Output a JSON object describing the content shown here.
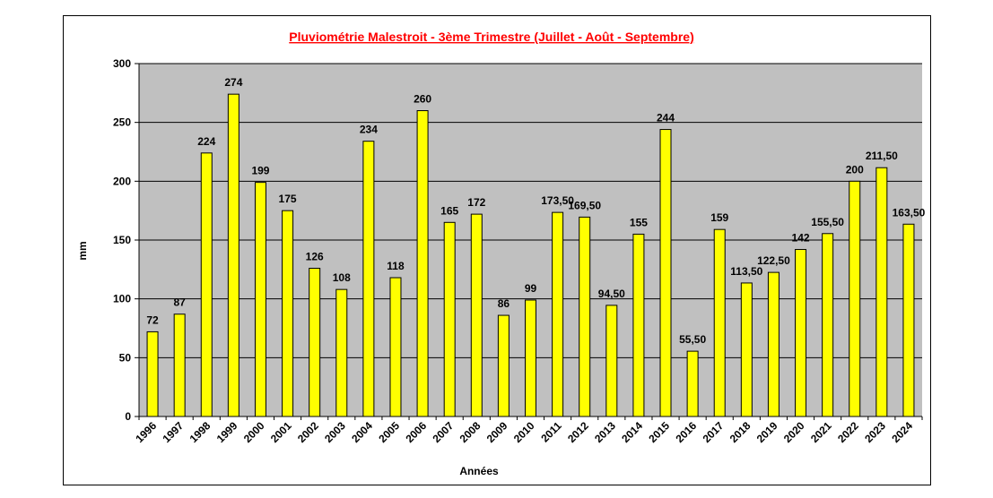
{
  "chart_data": {
    "type": "bar",
    "title": "Pluviométrie Malestroit - 3ème Trimestre (Juillet - Août - Septembre)",
    "xlabel": "Années",
    "ylabel": "mm",
    "ylim": [
      0,
      300
    ],
    "yticks": [
      "0",
      "50",
      "100",
      "150",
      "200",
      "250",
      "300"
    ],
    "grid": true,
    "categories": [
      "1996",
      "1997",
      "1998",
      "1999",
      "2000",
      "2001",
      "2002",
      "2003",
      "2004",
      "2005",
      "2006",
      "2007",
      "2008",
      "2009",
      "2010",
      "2011",
      "2012",
      "2013",
      "2014",
      "2015",
      "2016",
      "2017",
      "2018",
      "2019",
      "2020",
      "2021",
      "2022",
      "2023",
      "2024"
    ],
    "values": [
      72,
      87,
      224,
      274,
      199,
      175,
      126,
      108,
      234,
      118,
      260,
      165,
      172,
      86,
      99,
      173.5,
      169.5,
      94.5,
      155,
      244,
      55.5,
      159,
      113.5,
      122.5,
      142,
      155.5,
      200,
      211.5,
      163.5
    ],
    "value_labels": [
      "72",
      "87",
      "224",
      "274",
      "199",
      "175",
      "126",
      "108",
      "234",
      "118",
      "260",
      "165",
      "172",
      "86",
      "99",
      "173,50",
      "169,50",
      "94,50",
      "155",
      "244",
      "55,50",
      "159",
      "113,50",
      "122,50",
      "142",
      "155,50",
      "200",
      "211,50",
      "163,50"
    ],
    "colors": {
      "bar": "#ffff00",
      "bar_stroke": "#000000",
      "plot_bg": "#c0c0c0",
      "title": "#ff0000",
      "grid": "#000000"
    }
  }
}
